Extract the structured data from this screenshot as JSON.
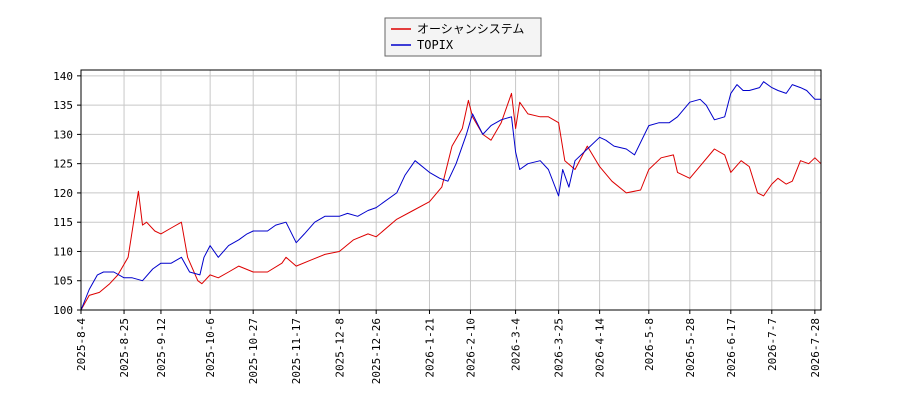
{
  "chart_data": {
    "type": "line",
    "title": "",
    "xlabel": "",
    "ylabel": "",
    "ylim": [
      100,
      141
    ],
    "xlim": [
      "2025-08-04",
      "2026-07-31"
    ],
    "grid": true,
    "legend": "top-center",
    "y_ticks": [
      100,
      105,
      110,
      115,
      120,
      125,
      130,
      135,
      140
    ],
    "x_ticks": [
      "2025-8-4",
      "2025-8-25",
      "2025-9-12",
      "2025-10-6",
      "2025-10-27",
      "2025-11-17",
      "2025-12-8",
      "2025-12-26",
      "2026-1-21",
      "2026-2-10",
      "2026-3-4",
      "2026-3-25",
      "2026-4-14",
      "2026-5-8",
      "2026-5-28",
      "2026-6-17",
      "2026-7-7",
      "2026-7-28"
    ],
    "series": [
      {
        "name": "オーシャンシステム",
        "color": "#dd0000",
        "points": [
          [
            "2025-08-04",
            100.0
          ],
          [
            "2025-08-08",
            102.5
          ],
          [
            "2025-08-13",
            103.0
          ],
          [
            "2025-08-18",
            104.5
          ],
          [
            "2025-08-22",
            106.0
          ],
          [
            "2025-08-27",
            109.0
          ],
          [
            "2025-09-01",
            120.3
          ],
          [
            "2025-09-03",
            114.5
          ],
          [
            "2025-09-05",
            115.0
          ],
          [
            "2025-09-09",
            113.5
          ],
          [
            "2025-09-12",
            113.0
          ],
          [
            "2025-09-17",
            114.0
          ],
          [
            "2025-09-22",
            115.0
          ],
          [
            "2025-09-25",
            109.0
          ],
          [
            "2025-09-30",
            105.0
          ],
          [
            "2025-10-02",
            104.5
          ],
          [
            "2025-10-06",
            106.0
          ],
          [
            "2025-10-10",
            105.5
          ],
          [
            "2025-10-15",
            106.5
          ],
          [
            "2025-10-20",
            107.5
          ],
          [
            "2025-10-27",
            106.5
          ],
          [
            "2025-11-03",
            106.5
          ],
          [
            "2025-11-10",
            108.0
          ],
          [
            "2025-11-12",
            109.0
          ],
          [
            "2025-11-17",
            107.5
          ],
          [
            "2025-11-24",
            108.5
          ],
          [
            "2025-12-01",
            109.5
          ],
          [
            "2025-12-08",
            110.0
          ],
          [
            "2025-12-15",
            112.0
          ],
          [
            "2025-12-22",
            113.0
          ],
          [
            "2025-12-26",
            112.5
          ],
          [
            "2026-01-05",
            115.5
          ],
          [
            "2026-01-13",
            117.0
          ],
          [
            "2026-01-21",
            118.5
          ],
          [
            "2026-01-27",
            121.0
          ],
          [
            "2026-02-01",
            128.0
          ],
          [
            "2026-02-06",
            131.0
          ],
          [
            "2026-02-09",
            135.8
          ],
          [
            "2026-02-11",
            133.0
          ],
          [
            "2026-02-16",
            130.0
          ],
          [
            "2026-02-20",
            129.0
          ],
          [
            "2026-02-25",
            132.0
          ],
          [
            "2026-03-02",
            137.0
          ],
          [
            "2026-03-04",
            131.0
          ],
          [
            "2026-03-06",
            135.5
          ],
          [
            "2026-03-10",
            133.5
          ],
          [
            "2026-03-16",
            133.0
          ],
          [
            "2026-03-20",
            133.0
          ],
          [
            "2026-03-25",
            132.0
          ],
          [
            "2026-03-28",
            125.5
          ],
          [
            "2026-04-02",
            124.0
          ],
          [
            "2026-04-08",
            128.0
          ],
          [
            "2026-04-14",
            124.5
          ],
          [
            "2026-04-20",
            122.0
          ],
          [
            "2026-04-27",
            120.0
          ],
          [
            "2026-05-04",
            120.5
          ],
          [
            "2026-05-08",
            124.0
          ],
          [
            "2026-05-14",
            126.0
          ],
          [
            "2026-05-20",
            126.5
          ],
          [
            "2026-05-22",
            123.5
          ],
          [
            "2026-05-28",
            122.5
          ],
          [
            "2026-06-03",
            125.0
          ],
          [
            "2026-06-09",
            127.5
          ],
          [
            "2026-06-14",
            126.5
          ],
          [
            "2026-06-17",
            123.5
          ],
          [
            "2026-06-22",
            125.5
          ],
          [
            "2026-06-26",
            124.5
          ],
          [
            "2026-06-30",
            120.0
          ],
          [
            "2026-07-03",
            119.5
          ],
          [
            "2026-07-07",
            121.5
          ],
          [
            "2026-07-10",
            122.5
          ],
          [
            "2026-07-14",
            121.5
          ],
          [
            "2026-07-17",
            122.0
          ],
          [
            "2026-07-21",
            125.5
          ],
          [
            "2026-07-25",
            125.0
          ],
          [
            "2026-07-28",
            126.0
          ],
          [
            "2026-07-31",
            125.0
          ]
        ]
      },
      {
        "name": "TOPIX",
        "color": "#0000cc",
        "points": [
          [
            "2025-08-04",
            100.0
          ],
          [
            "2025-08-08",
            103.5
          ],
          [
            "2025-08-12",
            106.0
          ],
          [
            "2025-08-15",
            106.5
          ],
          [
            "2025-08-20",
            106.5
          ],
          [
            "2025-08-25",
            105.5
          ],
          [
            "2025-08-29",
            105.5
          ],
          [
            "2025-09-03",
            105.0
          ],
          [
            "2025-09-08",
            107.0
          ],
          [
            "2025-09-12",
            108.0
          ],
          [
            "2025-09-17",
            108.0
          ],
          [
            "2025-09-22",
            109.0
          ],
          [
            "2025-09-26",
            106.5
          ],
          [
            "2025-10-01",
            106.0
          ],
          [
            "2025-10-03",
            109.0
          ],
          [
            "2025-10-06",
            111.0
          ],
          [
            "2025-10-10",
            109.0
          ],
          [
            "2025-10-15",
            111.0
          ],
          [
            "2025-10-20",
            112.0
          ],
          [
            "2025-10-24",
            113.0
          ],
          [
            "2025-10-27",
            113.5
          ],
          [
            "2025-11-03",
            113.5
          ],
          [
            "2025-11-07",
            114.5
          ],
          [
            "2025-11-12",
            115.0
          ],
          [
            "2025-11-17",
            111.5
          ],
          [
            "2025-11-21",
            113.0
          ],
          [
            "2025-11-26",
            115.0
          ],
          [
            "2025-12-01",
            116.0
          ],
          [
            "2025-12-08",
            116.0
          ],
          [
            "2025-12-12",
            116.5
          ],
          [
            "2025-12-17",
            116.0
          ],
          [
            "2025-12-22",
            117.0
          ],
          [
            "2025-12-26",
            117.5
          ],
          [
            "2026-01-05",
            120.0
          ],
          [
            "2026-01-09",
            123.0
          ],
          [
            "2026-01-14",
            125.5
          ],
          [
            "2026-01-21",
            123.5
          ],
          [
            "2026-01-26",
            122.5
          ],
          [
            "2026-01-30",
            122.0
          ],
          [
            "2026-02-03",
            125.0
          ],
          [
            "2026-02-08",
            130.0
          ],
          [
            "2026-02-11",
            133.5
          ],
          [
            "2026-02-16",
            130.0
          ],
          [
            "2026-02-20",
            131.5
          ],
          [
            "2026-02-25",
            132.5
          ],
          [
            "2026-03-02",
            133.0
          ],
          [
            "2026-03-04",
            127.0
          ],
          [
            "2026-03-06",
            124.0
          ],
          [
            "2026-03-10",
            125.0
          ],
          [
            "2026-03-16",
            125.5
          ],
          [
            "2026-03-20",
            124.0
          ],
          [
            "2026-03-25",
            119.5
          ],
          [
            "2026-03-27",
            124.0
          ],
          [
            "2026-03-30",
            121.0
          ],
          [
            "2026-04-02",
            125.5
          ],
          [
            "2026-04-08",
            127.5
          ],
          [
            "2026-04-14",
            129.5
          ],
          [
            "2026-04-17",
            129.0
          ],
          [
            "2026-04-21",
            128.0
          ],
          [
            "2026-04-27",
            127.5
          ],
          [
            "2026-05-01",
            126.5
          ],
          [
            "2026-05-08",
            131.5
          ],
          [
            "2026-05-13",
            132.0
          ],
          [
            "2026-05-18",
            132.0
          ],
          [
            "2026-05-22",
            133.0
          ],
          [
            "2026-05-28",
            135.5
          ],
          [
            "2026-06-02",
            136.0
          ],
          [
            "2026-06-05",
            135.0
          ],
          [
            "2026-06-09",
            132.5
          ],
          [
            "2026-06-14",
            133.0
          ],
          [
            "2026-06-17",
            137.0
          ],
          [
            "2026-06-20",
            138.5
          ],
          [
            "2026-06-23",
            137.5
          ],
          [
            "2026-06-26",
            137.5
          ],
          [
            "2026-07-01",
            138.0
          ],
          [
            "2026-07-03",
            139.0
          ],
          [
            "2026-07-07",
            138.0
          ],
          [
            "2026-07-10",
            137.5
          ],
          [
            "2026-07-14",
            137.0
          ],
          [
            "2026-07-17",
            138.5
          ],
          [
            "2026-07-21",
            138.0
          ],
          [
            "2026-07-24",
            137.5
          ],
          [
            "2026-07-28",
            136.0
          ],
          [
            "2026-07-31",
            136.0
          ]
        ]
      }
    ]
  }
}
